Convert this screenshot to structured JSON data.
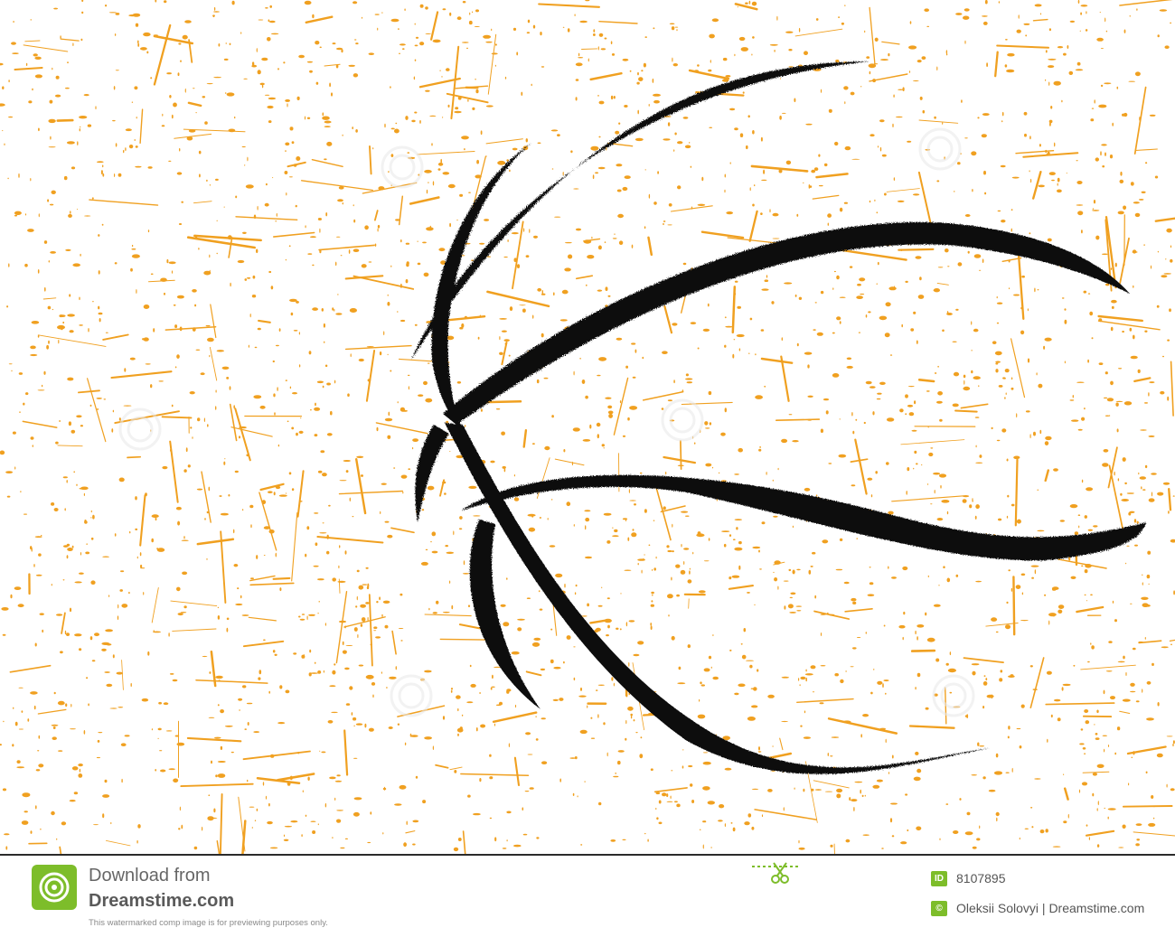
{
  "artwork": {
    "subject": "distressed basketball seam lines",
    "colors": {
      "background": "#ffffff",
      "grunge": "#f0a020",
      "lines": "#111111"
    }
  },
  "footer": {
    "download_label": "Download from",
    "brand": "Dreamstime.com",
    "disclaimer": "This watermarked comp image is for previewing purposes only.",
    "id_badge": "ID",
    "image_id": "8107895",
    "copyright_badge": "©",
    "credit": "Oleksii Solovyi  | Dreamstime.com",
    "logo_icon": "dreamstime-swirl-logo-icon",
    "scissors_icon": "scissors-icon",
    "colors": {
      "accent": "#7dbd2a",
      "text": "#555555"
    }
  }
}
